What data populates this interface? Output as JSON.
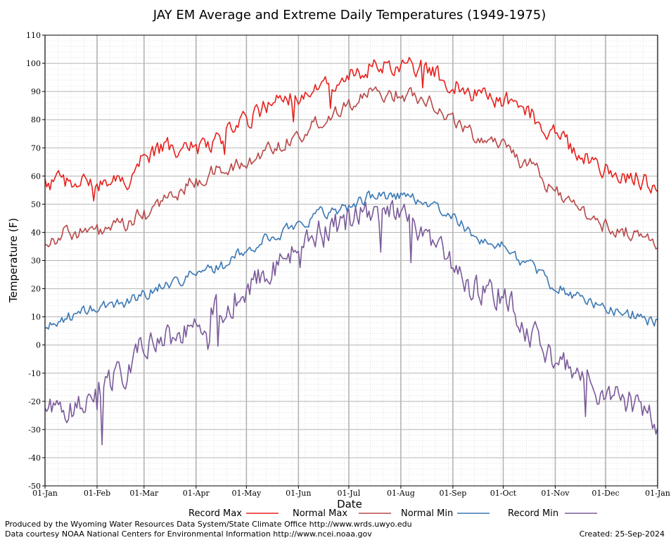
{
  "chart_data": {
    "type": "line",
    "title": "JAY EM Average and Extreme Daily Temperatures (1949-1975)",
    "xlabel": "Date",
    "ylabel": "Temperature (F)",
    "ylim": [
      -50,
      110
    ],
    "yticks": [
      -50,
      -40,
      -30,
      -20,
      -10,
      0,
      10,
      20,
      30,
      40,
      50,
      60,
      70,
      80,
      90,
      100,
      110
    ],
    "xlim": [
      1,
      366
    ],
    "xtick_days": [
      1,
      32,
      60,
      91,
      121,
      152,
      182,
      213,
      244,
      274,
      305,
      335,
      366
    ],
    "xtick_labels": [
      "01-Jan",
      "01-Feb",
      "01-Mar",
      "01-Apr",
      "01-May",
      "01-Jun",
      "01-Jul",
      "01-Aug",
      "01-Sep",
      "01-Oct",
      "01-Nov",
      "01-Dec",
      "01-Jan"
    ],
    "grid": true,
    "legend_position": "bottom",
    "x": [
      1,
      15,
      32,
      46,
      60,
      74,
      91,
      105,
      121,
      135,
      152,
      166,
      182,
      196,
      213,
      227,
      244,
      258,
      274,
      288,
      305,
      319,
      335,
      349,
      366
    ],
    "series": [
      {
        "name": "Record Max",
        "color": "#e8201c",
        "values": [
          57,
          58,
          57,
          57,
          66,
          70,
          70,
          73,
          80,
          85,
          88,
          92,
          96,
          99,
          99,
          98,
          93,
          89,
          87,
          82,
          75,
          68,
          62,
          60,
          57
        ]
      },
      {
        "name": "Normal Max",
        "color": "#b84848",
        "values": [
          37,
          40,
          40,
          42,
          46,
          52,
          58,
          62,
          64,
          70,
          74,
          80,
          86,
          89,
          89,
          88,
          80,
          74,
          72,
          64,
          55,
          48,
          42,
          40,
          37
        ]
      },
      {
        "name": "Normal Min",
        "color": "#3b78b4",
        "values": [
          6,
          10,
          13,
          15,
          18,
          22,
          25,
          28,
          33,
          38,
          43,
          47,
          49,
          53,
          53,
          51,
          45,
          38,
          35,
          29,
          21,
          17,
          13,
          11,
          8
        ]
      },
      {
        "name": "Record Min",
        "color": "#7a5a9a",
        "values": [
          -25,
          -23,
          -15,
          -10,
          0,
          2,
          5,
          12,
          20,
          27,
          32,
          40,
          44,
          47,
          45,
          40,
          28,
          20,
          18,
          5,
          -5,
          -12,
          -20,
          -20,
          -28
        ]
      }
    ],
    "footer_left_1": "Produced by the Wyoming Water Resources Data System/State Climate Office http://www.wrds.uwyo.edu",
    "footer_left_2": "Data courtesy NOAA National Centers for Environmental Information http://www.ncei.noaa.gov",
    "footer_right": "Created:  25-Sep-2024"
  }
}
